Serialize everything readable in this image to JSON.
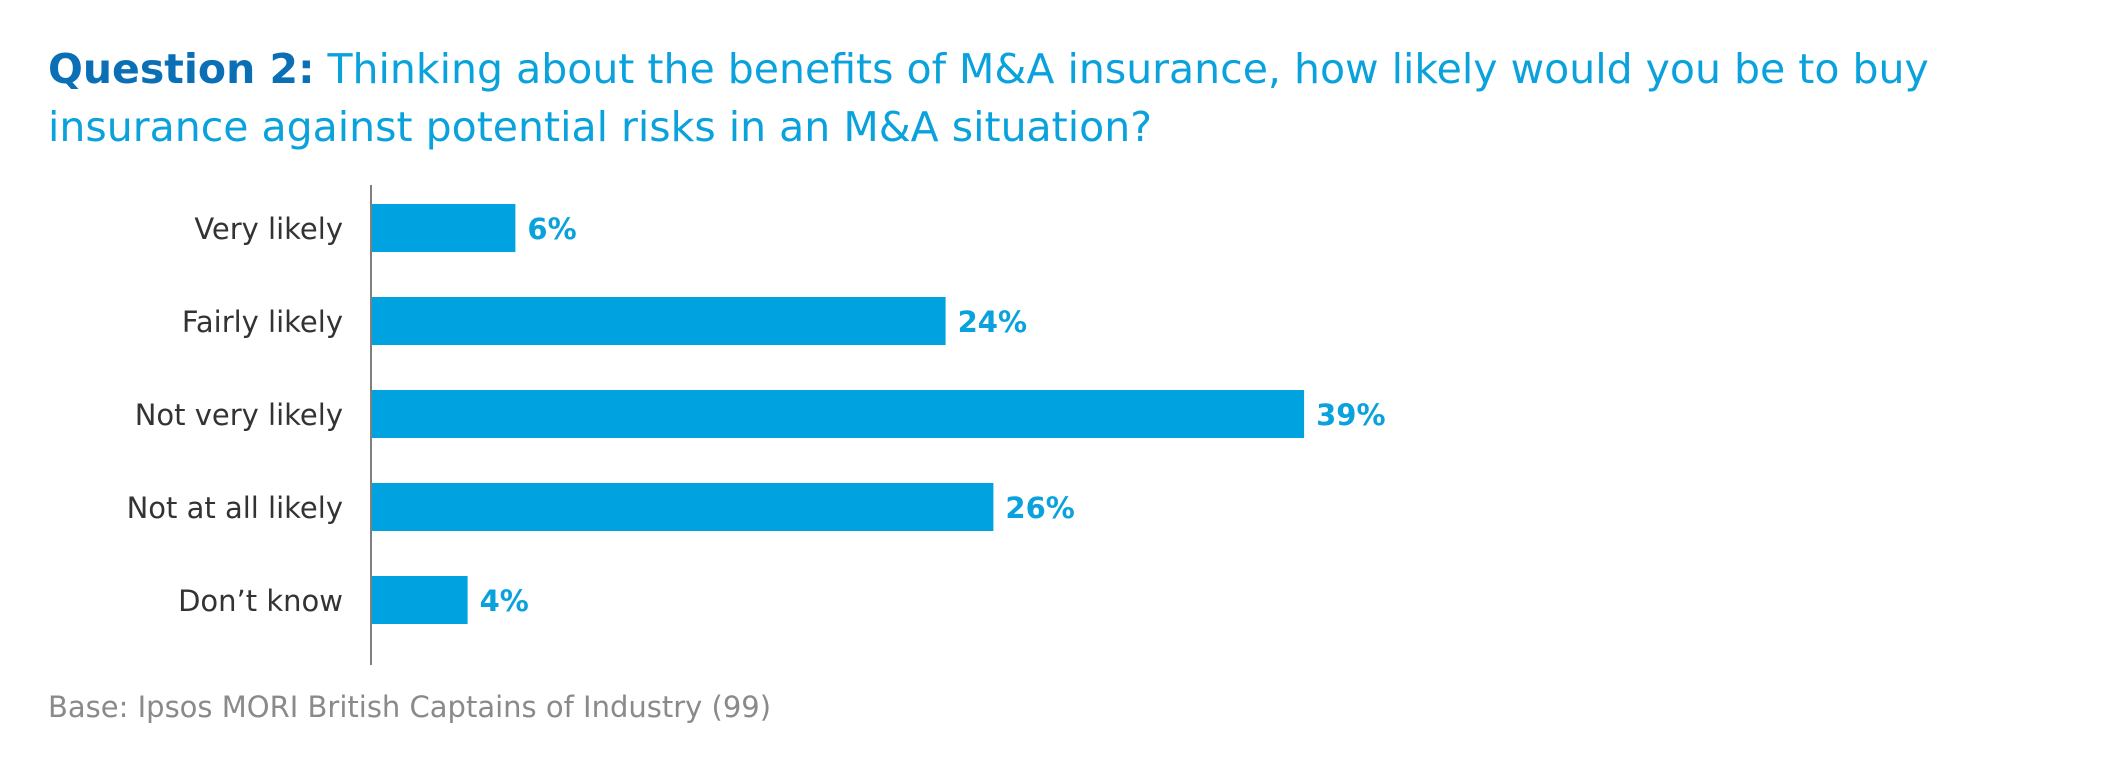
{
  "title": {
    "prefix": "Question 2:",
    "text": " Thinking about the benefits of M&A insurance, how likely would you be to buy insurance against potential risks in an M&A situation?"
  },
  "chart_data": {
    "type": "bar",
    "orientation": "horizontal",
    "categories": [
      "Very likely",
      "Fairly likely",
      "Not very likely",
      "Not at all likely",
      "Don’t know"
    ],
    "values": [
      6,
      24,
      39,
      26,
      4
    ],
    "value_labels": [
      "6%",
      "24%",
      "39%",
      "26%",
      "4%"
    ],
    "title": "Question 2: Thinking about the benefits of M&A insurance, how likely would you be to buy insurance against potential risks in an M&A situation?",
    "xlabel": "",
    "ylabel": "",
    "xlim": [
      0,
      45
    ],
    "grid": false,
    "legend": "none"
  },
  "footnote": "Base: Ipsos MORI British Captains of Industry (99)",
  "colors": {
    "bar": "#00a3df",
    "value_label": "#0aa2dc",
    "axis": "#7f7f7f",
    "category_label": "#333333"
  }
}
